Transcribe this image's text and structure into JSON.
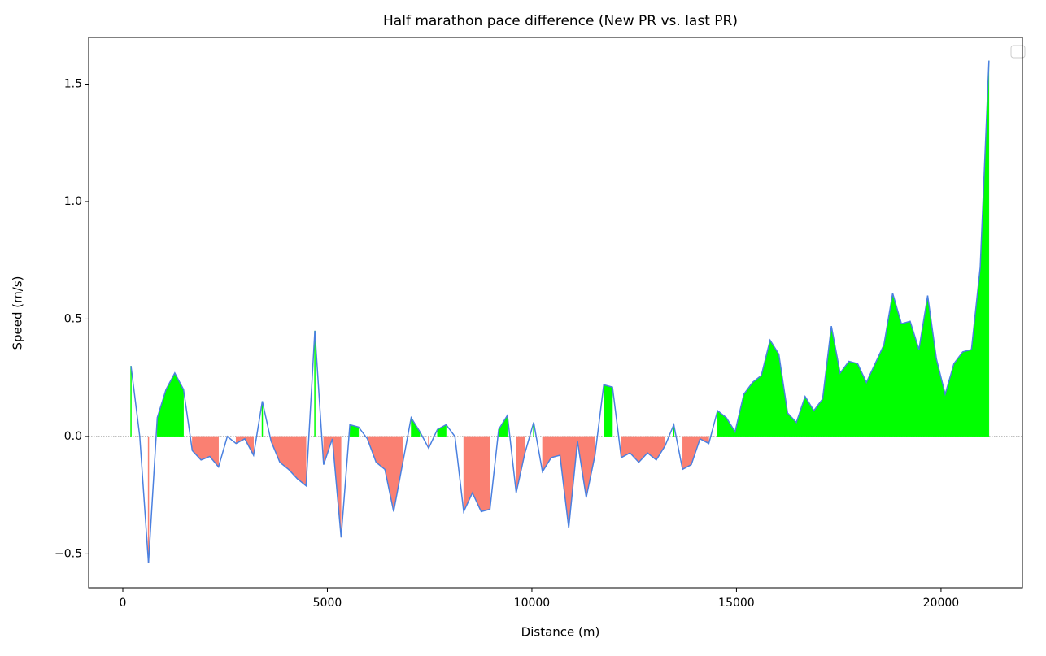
{
  "chart_data": {
    "type": "line",
    "title": "Half marathon pace difference (New PR vs. last PR)",
    "x_label": "Distance (m)",
    "y_label": "Speed (m/s)",
    "x": [
      200,
      414,
      628,
      842,
      1056,
      1270,
      1484,
      1698,
      1912,
      2126,
      2340,
      2554,
      2768,
      2982,
      3196,
      3410,
      3624,
      3838,
      4052,
      4266,
      4480,
      4694,
      4908,
      5122,
      5336,
      5550,
      5764,
      5978,
      6192,
      6406,
      6620,
      6834,
      7048,
      7262,
      7476,
      7690,
      7904,
      8118,
      8332,
      8546,
      8760,
      8974,
      9188,
      9402,
      9616,
      9830,
      10044,
      10258,
      10472,
      10686,
      10900,
      11114,
      11328,
      11542,
      11756,
      11970,
      12184,
      12398,
      12612,
      12826,
      13040,
      13254,
      13468,
      13682,
      13896,
      14110,
      14324,
      14538,
      14752,
      14966,
      15180,
      15394,
      15608,
      15822,
      16036,
      16250,
      16464,
      16678,
      16892,
      17106,
      17320,
      17534,
      17748,
      17962,
      18176,
      18390,
      18604,
      18818,
      19032,
      19246,
      19460,
      19674,
      19888,
      20102,
      20316,
      20530,
      20744,
      20958,
      21172
    ],
    "series": [
      {
        "color": "#4a80e0",
        "values": [
          0.3,
          0.0,
          -0.54,
          0.08,
          0.2,
          0.27,
          0.2,
          -0.06,
          -0.1,
          -0.085,
          -0.13,
          0.0,
          -0.03,
          -0.01,
          -0.08,
          0.15,
          -0.02,
          -0.11,
          -0.14,
          -0.18,
          -0.21,
          0.45,
          -0.12,
          -0.01,
          -0.43,
          0.05,
          0.04,
          -0.01,
          -0.11,
          -0.14,
          -0.32,
          -0.12,
          0.08,
          0.02,
          -0.05,
          0.03,
          0.05,
          0.0,
          -0.32,
          -0.24,
          -0.32,
          -0.31,
          0.03,
          0.09,
          -0.24,
          -0.07,
          0.06,
          -0.15,
          -0.09,
          -0.08,
          -0.39,
          -0.02,
          -0.26,
          -0.08,
          0.22,
          0.21,
          -0.09,
          -0.07,
          -0.11,
          -0.07,
          -0.1,
          -0.04,
          0.05,
          -0.14,
          -0.12,
          -0.01,
          -0.03,
          0.11,
          0.08,
          0.02,
          0.18,
          0.23,
          0.26,
          0.41,
          0.35,
          0.1,
          0.06,
          0.17,
          0.11,
          0.16,
          0.47,
          0.27,
          0.32,
          0.31,
          0.23,
          0.31,
          0.39,
          0.61,
          0.48,
          0.49,
          0.37,
          0.6,
          0.33,
          0.18,
          0.31,
          0.36,
          0.37,
          0.72,
          1.6
        ]
      }
    ],
    "positive_color": "#00ff00",
    "negative_color": "#fa8072",
    "xlim": [
      -835,
      21990
    ],
    "ylim": [
      -0.644,
      1.699
    ],
    "xticks": [
      0,
      5000,
      10000,
      15000,
      20000
    ],
    "yticks": [
      {
        "value": -0.5,
        "label": "−0.5"
      },
      {
        "value": 0,
        "label": "0.0"
      },
      {
        "value": 0.5,
        "label": "0.5"
      },
      {
        "value": 1,
        "label": "1.0"
      },
      {
        "value": 1.5,
        "label": "1.5"
      }
    ]
  }
}
